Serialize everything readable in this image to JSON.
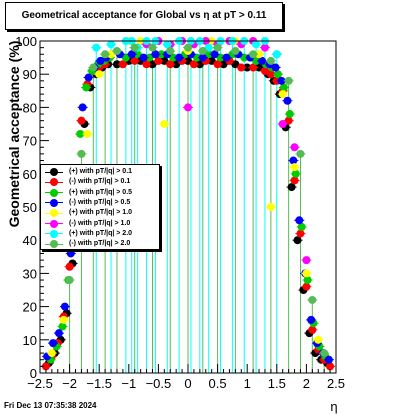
{
  "title": "Geometrical acceptance for Global vs   η  at pT > 0.11",
  "footer": "Fri Dec 13 07:35:38 2024",
  "chart_data": {
    "type": "scatter",
    "title": "Geometrical acceptance for Global vs   η  at pT > 0.11",
    "xlabel": "η",
    "ylabel": "Geometrical acceptance (%)",
    "xlim": [
      -2.5,
      2.5
    ],
    "ylim": [
      0,
      100
    ],
    "xticks": [
      -2.5,
      -2,
      -1.5,
      -1,
      -0.5,
      0,
      0.5,
      1,
      1.5,
      2,
      2.5
    ],
    "xtick_labels": [
      "−2.5",
      "−2",
      "−1.5",
      "−1",
      "−0.5",
      "0",
      "0.5",
      "1",
      "1.5",
      "2",
      "2.5"
    ],
    "yticks": [
      0,
      10,
      20,
      30,
      40,
      50,
      60,
      70,
      80,
      90,
      100
    ],
    "ytick_labels": [
      "0",
      "10",
      "20",
      "30",
      "40",
      "50",
      "60",
      "70",
      "80",
      "90",
      "100"
    ],
    "grid": false,
    "legend_position": "left-middle",
    "series": [
      {
        "name": "(+) with pT/|q| > 0.1",
        "color": "#000000",
        "x": [
          -2.35,
          -2.25,
          -2.15,
          -2.05,
          -1.95,
          -1.85,
          -1.75,
          -1.65,
          -1.55,
          -1.45,
          -1.35,
          -1.2,
          -1.0,
          -0.8,
          -0.6,
          -0.4,
          -0.2,
          0.0,
          0.2,
          0.4,
          0.6,
          0.8,
          1.0,
          1.2,
          1.35,
          1.45,
          1.55,
          1.65,
          1.75,
          1.85,
          1.95,
          2.05,
          2.15,
          2.25,
          2.35
        ],
        "y": [
          3,
          6,
          10,
          18,
          33,
          55,
          75,
          86,
          90,
          92,
          93,
          93,
          94,
          94,
          93,
          94,
          93,
          94,
          93,
          94,
          93,
          93,
          92,
          92,
          90,
          88,
          84,
          74,
          56,
          40,
          25,
          12,
          6,
          4,
          3
        ]
      },
      {
        "name": "(-) with pT/|q| > 0.1",
        "color": "#ff0000",
        "x": [
          -2.4,
          -2.3,
          -2.2,
          -2.1,
          -2.0,
          -1.9,
          -1.8,
          -1.7,
          -1.6,
          -1.5,
          -1.4,
          -1.1,
          -0.9,
          -0.7,
          -0.5,
          -0.3,
          -0.1,
          0.1,
          0.3,
          0.5,
          0.7,
          0.9,
          1.1,
          1.3,
          1.4,
          1.5,
          1.6,
          1.7,
          1.8,
          1.9,
          2.0,
          2.1,
          2.2,
          2.3,
          2.4
        ],
        "y": [
          2,
          5,
          9,
          17,
          32,
          56,
          76,
          87,
          91,
          92,
          93,
          93,
          94,
          93,
          94,
          93,
          94,
          93,
          94,
          93,
          94,
          92,
          92,
          91,
          90,
          88,
          85,
          76,
          58,
          42,
          26,
          13,
          7,
          4,
          2
        ]
      },
      {
        "name": "(+) with pT/|q| > 0.5",
        "color": "#00cc00",
        "x": [
          -2.32,
          -2.22,
          -2.12,
          -2.02,
          -1.92,
          -1.82,
          -1.72,
          -1.62,
          -1.52,
          -1.42,
          -1.32,
          -1.05,
          -0.85,
          -0.65,
          -0.45,
          -0.25,
          -0.05,
          0.15,
          0.35,
          0.55,
          0.75,
          0.95,
          1.15,
          1.32,
          1.42,
          1.52,
          1.62,
          1.72,
          1.82,
          1.92,
          2.02,
          2.12,
          2.22,
          2.32
        ],
        "y": [
          4,
          8,
          14,
          28,
          50,
          72,
          86,
          91,
          93,
          94,
          95,
          95,
          96,
          95,
          96,
          95,
          96,
          95,
          96,
          95,
          96,
          95,
          94,
          93,
          92,
          90,
          86,
          78,
          60,
          44,
          28,
          15,
          8,
          5
        ]
      },
      {
        "name": "(-) with pT/|q| > 0.5",
        "color": "#0000ff",
        "x": [
          -2.38,
          -2.28,
          -2.18,
          -2.08,
          -1.98,
          -1.88,
          -1.78,
          -1.68,
          -1.58,
          -1.48,
          -1.38,
          -1.15,
          -0.95,
          -0.75,
          -0.55,
          -0.35,
          -0.15,
          0.05,
          0.25,
          0.45,
          0.65,
          0.85,
          1.05,
          1.25,
          1.38,
          1.48,
          1.58,
          1.68,
          1.78,
          1.88,
          1.98,
          2.08,
          2.18,
          2.28,
          2.38
        ],
        "y": [
          5,
          9,
          12,
          20,
          36,
          60,
          80,
          89,
          92,
          94,
          95,
          96,
          96,
          95,
          96,
          96,
          95,
          96,
          95,
          96,
          95,
          96,
          95,
          94,
          93,
          92,
          88,
          82,
          64,
          46,
          30,
          16,
          9,
          6,
          4
        ]
      },
      {
        "name": "(+) with pT/|q| > 1.0",
        "color": "#ffff00",
        "x": [
          -2.3,
          -2.1,
          -1.9,
          -1.7,
          -1.5,
          -1.3,
          -1.0,
          -0.8,
          -0.4,
          0.0,
          0.4,
          0.8,
          1.2,
          1.4,
          1.6,
          1.8,
          2.0,
          2.2
        ],
        "y": [
          6,
          16,
          38,
          72,
          90,
          96,
          100,
          100,
          75,
          97,
          100,
          100,
          96,
          50,
          84,
          62,
          30,
          10
        ]
      },
      {
        "name": "(-) with pT/|q| > 1.0",
        "color": "#ff00ff",
        "x": [
          -0.9,
          -0.7,
          -0.5,
          -0.3,
          -0.1,
          0.0,
          0.1,
          0.3,
          0.5,
          0.7,
          0.9,
          1.1,
          1.3,
          1.5,
          1.6,
          1.8,
          2.0
        ],
        "y": [
          98,
          99,
          100,
          99,
          100,
          80,
          99,
          100,
          99,
          100,
          99,
          100,
          98,
          96,
          75,
          68,
          34
        ]
      },
      {
        "name": "(+) with pT/|q| > 2.0",
        "color": "#00ffff",
        "x": [
          -1.55,
          -1.3,
          -1.05,
          -0.95,
          -0.85,
          -0.7,
          -0.55,
          -0.35,
          -0.15,
          0.05,
          0.2,
          0.35,
          0.55,
          0.75,
          0.95,
          1.15,
          1.3,
          1.5
        ],
        "y": [
          98,
          99,
          100,
          100,
          98,
          100,
          100,
          99,
          100,
          100,
          100,
          98,
          100,
          100,
          100,
          99,
          100,
          96
        ]
      },
      {
        "name": "(-) with pT/|q| > 2.0",
        "color": "#55bb55",
        "x": [
          -2.0,
          -1.8,
          -1.6,
          -1.4,
          -1.2,
          -0.9,
          -0.6,
          -0.3,
          0.0,
          0.25,
          0.5,
          0.8,
          1.1,
          1.4,
          1.7,
          1.9,
          2.1,
          2.3
        ],
        "y": [
          28,
          66,
          92,
          96,
          97,
          98,
          98,
          97,
          98,
          97,
          98,
          97,
          96,
          94,
          88,
          66,
          22,
          6
        ]
      }
    ]
  }
}
